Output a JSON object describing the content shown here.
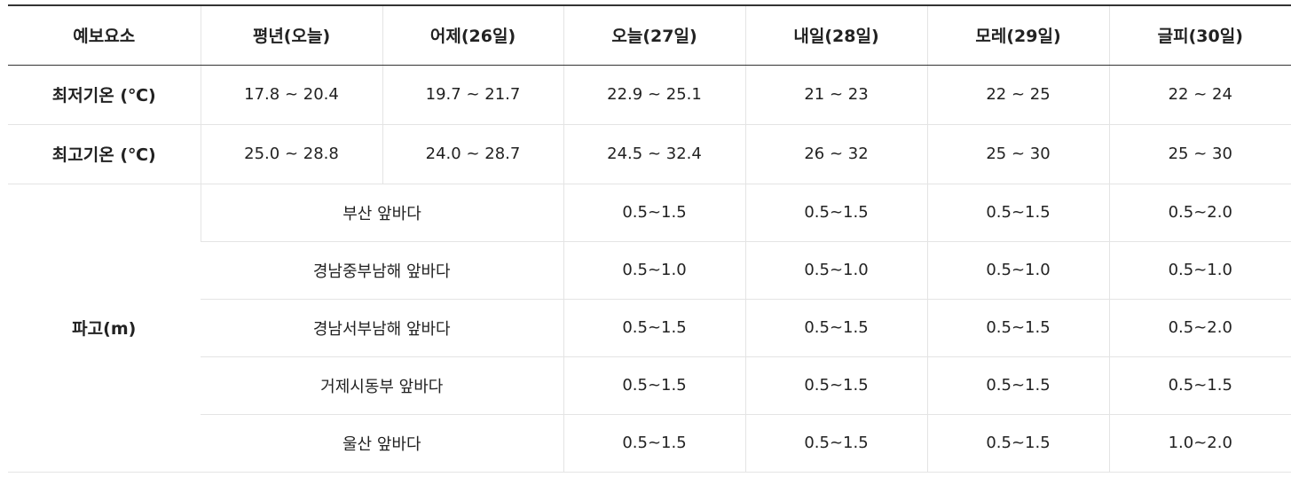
{
  "header": {
    "columns": [
      "예보요소",
      "평년(오늘)",
      "어제(26일)",
      "오늘(27일)",
      "내일(28일)",
      "모레(29일)",
      "글피(30일)"
    ]
  },
  "temperature_rows": [
    {
      "label": "최저기온 (℃)",
      "values": [
        "17.8 ~ 20.4",
        "19.7 ~ 21.7",
        "22.9 ~ 25.1",
        "21 ~ 23",
        "22 ~ 25",
        "22 ~ 24"
      ]
    },
    {
      "label": "최고기온 (℃)",
      "values": [
        "25.0 ~ 28.8",
        "24.0 ~ 28.7",
        "24.5 ~ 32.4",
        "26 ~ 32",
        "25 ~ 30",
        "25 ~ 30"
      ]
    }
  ],
  "wave": {
    "label": "파고(m)",
    "rows": [
      {
        "area": "부산 앞바다",
        "values": [
          "0.5~1.5",
          "0.5~1.5",
          "0.5~1.5",
          "0.5~2.0"
        ]
      },
      {
        "area": "경남중부남해 앞바다",
        "values": [
          "0.5~1.0",
          "0.5~1.0",
          "0.5~1.0",
          "0.5~1.0"
        ]
      },
      {
        "area": "경남서부남해 앞바다",
        "values": [
          "0.5~1.5",
          "0.5~1.5",
          "0.5~1.5",
          "0.5~2.0"
        ]
      },
      {
        "area": "거제시동부 앞바다",
        "values": [
          "0.5~1.5",
          "0.5~1.5",
          "0.5~1.5",
          "0.5~1.5"
        ]
      },
      {
        "area": "울산 앞바다",
        "values": [
          "0.5~1.5",
          "0.5~1.5",
          "0.5~1.5",
          "1.0~2.0"
        ]
      }
    ]
  },
  "colors": {
    "text": "#222222",
    "header_rule": "#333333",
    "grid_line": "#e4e4e4"
  }
}
